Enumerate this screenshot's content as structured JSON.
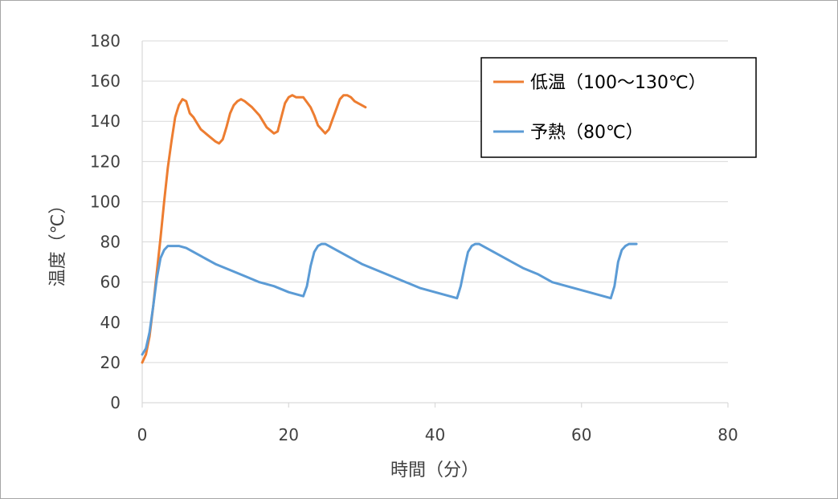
{
  "chart_data": {
    "type": "line",
    "title": "",
    "xlabel": "時間（分）",
    "ylabel": "温度（℃）",
    "xlim": [
      0,
      80
    ],
    "ylim": [
      0,
      180
    ],
    "xticks": [
      "0",
      "20",
      "40",
      "60",
      "80"
    ],
    "yticks": [
      "0",
      "20",
      "40",
      "60",
      "80",
      "100",
      "120",
      "140",
      "160",
      "180"
    ],
    "grid": true,
    "legend_position": "top-right",
    "series": [
      {
        "name": "低温（100～130℃）",
        "color": "#ed7d31",
        "x": [
          0,
          0.5,
          1,
          1.5,
          2,
          2.5,
          3,
          3.5,
          4,
          4.5,
          5,
          5.5,
          6,
          6.5,
          7,
          7.5,
          8,
          9,
          10,
          10.5,
          11,
          11.5,
          12,
          12.5,
          13,
          13.5,
          14,
          15,
          16,
          17,
          18,
          18.5,
          19,
          19.5,
          20,
          20.5,
          21,
          22,
          23,
          23.5,
          24,
          25,
          25.5,
          26,
          26.5,
          27,
          27.5,
          28,
          28.5,
          29,
          29.5,
          30,
          30.5
        ],
        "y": [
          20,
          24,
          33,
          48,
          65,
          82,
          100,
          117,
          130,
          142,
          148,
          151,
          150,
          144,
          142,
          139,
          136,
          133,
          130,
          129,
          131,
          137,
          144,
          148,
          150,
          151,
          150,
          147,
          143,
          137,
          134,
          135,
          142,
          149,
          152,
          153,
          152,
          152,
          147,
          143,
          138,
          134,
          136,
          141,
          146,
          151,
          153,
          153,
          152,
          150,
          149,
          148,
          147
        ]
      },
      {
        "name": "予熱（80℃）",
        "color": "#5b9bd5",
        "x": [
          0,
          0.5,
          1,
          1.5,
          2,
          2.5,
          3,
          3.5,
          4,
          5,
          6,
          8,
          10,
          12,
          14,
          16,
          18,
          20,
          22,
          22.5,
          23,
          23.5,
          24,
          24.5,
          25,
          26,
          28,
          30,
          32,
          34,
          36,
          38,
          40,
          42,
          43,
          43.5,
          44,
          44.5,
          45,
          45.5,
          46,
          46.5,
          48,
          50,
          52,
          54,
          56,
          58,
          60,
          62,
          63,
          64,
          64.5,
          65,
          65.5,
          66,
          66.5,
          67,
          67.5
        ],
        "y": [
          24,
          27,
          35,
          48,
          62,
          72,
          76,
          78,
          78,
          78,
          77,
          73,
          69,
          66,
          63,
          60,
          58,
          55,
          53,
          58,
          68,
          75,
          78,
          79,
          79,
          77,
          73,
          69,
          66,
          63,
          60,
          57,
          55,
          53,
          52,
          58,
          67,
          75,
          78,
          79,
          79,
          78,
          75,
          71,
          67,
          64,
          60,
          58,
          56,
          54,
          53,
          52,
          58,
          70,
          76,
          78,
          79,
          79,
          79
        ]
      }
    ]
  }
}
